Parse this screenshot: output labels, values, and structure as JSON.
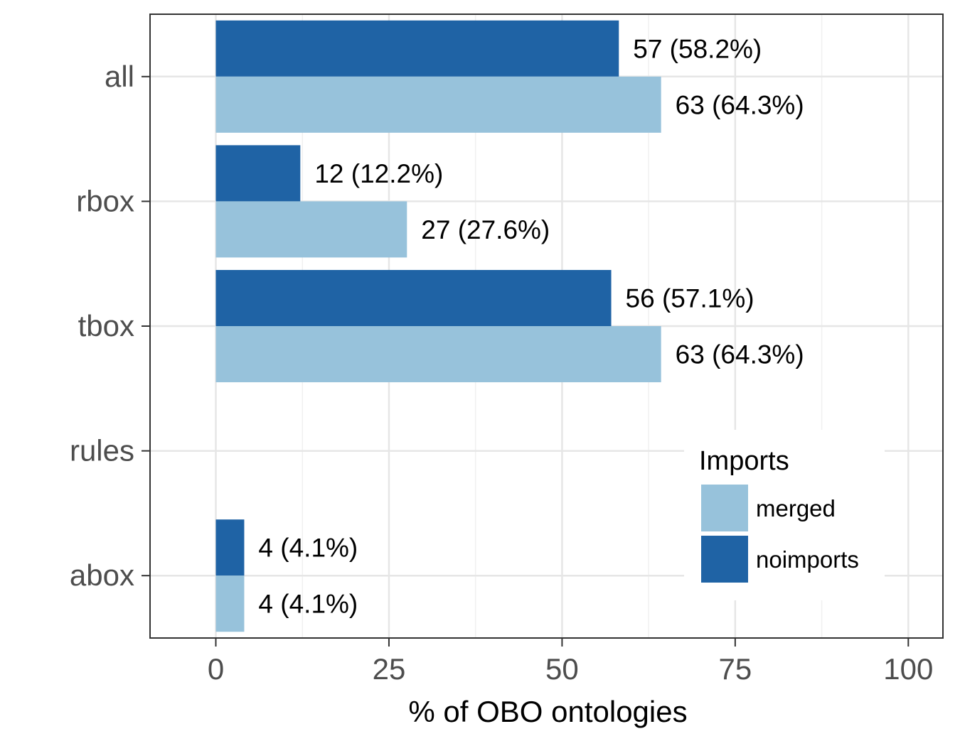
{
  "chart_data": {
    "type": "bar",
    "orientation": "horizontal",
    "categories": [
      "all",
      "rbox",
      "tbox",
      "rules",
      "abox"
    ],
    "series": [
      {
        "name": "noimports",
        "color": "#1f63a5",
        "values": [
          58.2,
          12.2,
          57.1,
          null,
          4.1
        ],
        "labels": [
          "57 (58.2%)",
          "12 (12.2%)",
          "56 (57.1%)",
          "",
          "4 (4.1%)"
        ]
      },
      {
        "name": "merged",
        "color": "#97c2db",
        "values": [
          64.3,
          27.6,
          64.3,
          null,
          4.1
        ],
        "labels": [
          "63 (64.3%)",
          "27 (27.6%)",
          "63 (64.3%)",
          "",
          "4 (4.1%)"
        ]
      }
    ],
    "xlabel": "% of OBO ontologies",
    "ylabel": "",
    "xlim": [
      -9.5,
      105
    ],
    "xticks": [
      "0",
      "25",
      "50",
      "75",
      "100"
    ],
    "xtick_values": [
      0,
      25,
      50,
      75,
      100
    ],
    "grid": true,
    "legend": {
      "title": "Imports",
      "placement": "bottom-right",
      "entries": [
        {
          "label": "merged",
          "color": "#97c2db"
        },
        {
          "label": "noimports",
          "color": "#1f63a5"
        }
      ]
    }
  }
}
